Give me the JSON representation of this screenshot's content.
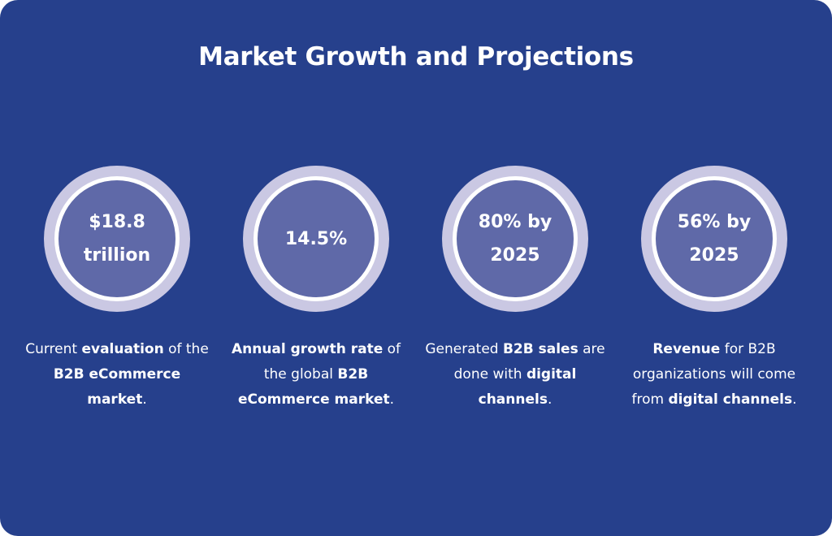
{
  "title": "Market Growth and Projections",
  "stats": [
    {
      "value": "$18.8 trillion",
      "description": [
        {
          "text": "Current ",
          "bold": false
        },
        {
          "text": "evaluation",
          "bold": true
        },
        {
          "text": " of the ",
          "bold": false
        },
        {
          "text": "B2B eCommerce market",
          "bold": true
        },
        {
          "text": ".",
          "bold": false
        }
      ]
    },
    {
      "value": "14.5%",
      "description": [
        {
          "text": "Annual growth rate",
          "bold": true
        },
        {
          "text": " of the global ",
          "bold": false
        },
        {
          "text": "B2B eCommerce market",
          "bold": true
        },
        {
          "text": ".",
          "bold": false
        }
      ]
    },
    {
      "value": "80% by 2025",
      "description": [
        {
          "text": "Generated ",
          "bold": false
        },
        {
          "text": "B2B sales",
          "bold": true
        },
        {
          "text": " are done with ",
          "bold": false
        },
        {
          "text": "digital channels",
          "bold": true
        },
        {
          "text": ".",
          "bold": false
        }
      ]
    },
    {
      "value": "56% by 2025",
      "description": [
        {
          "text": "Revenue",
          "bold": true
        },
        {
          "text": " for B2B organizations will come from ",
          "bold": false
        },
        {
          "text": "digital channels",
          "bold": true
        },
        {
          "text": ".",
          "bold": false
        }
      ]
    }
  ],
  "colors": {
    "background": "#26408c",
    "ring_outer": "#cac8e3",
    "ring_gap": "#ffffff",
    "disc": "#5f69a8",
    "text": "#ffffff"
  }
}
